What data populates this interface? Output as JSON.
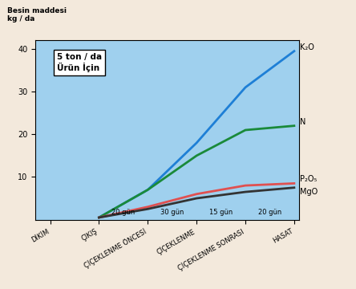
{
  "chart_data": {
    "type": "line",
    "title": "5 ton / da\nÜrün İçin",
    "y_label": "Besin maddesi\nkg / da",
    "categories": [
      "DİKİM",
      "ÇIKIŞ",
      "ÇİÇEKLENME ÖNCESİ",
      "ÇİÇEKLENME",
      "ÇİÇEKLENME SONRASI",
      "HASAT"
    ],
    "period_labels": [
      "20 gün",
      "30 gün",
      "15 gün",
      "20 gün"
    ],
    "series": [
      {
        "name": "K₂O",
        "color": "#1e7fd6",
        "values": [
          null,
          0.5,
          7,
          18,
          31,
          39.5
        ]
      },
      {
        "name": "N",
        "color": "#1a8a3a",
        "values": [
          null,
          0.5,
          7,
          15,
          21,
          22
        ]
      },
      {
        "name": "P₂O₅",
        "color": "#e05050",
        "values": [
          null,
          0.5,
          3,
          6,
          8,
          8.5
        ]
      },
      {
        "name": "MgO",
        "color": "#333333",
        "values": [
          null,
          0.5,
          2.5,
          5,
          6.5,
          7.5
        ]
      }
    ],
    "ylim": [
      0,
      42
    ],
    "yticks": [
      10,
      20,
      30,
      40
    ],
    "grid": false
  }
}
